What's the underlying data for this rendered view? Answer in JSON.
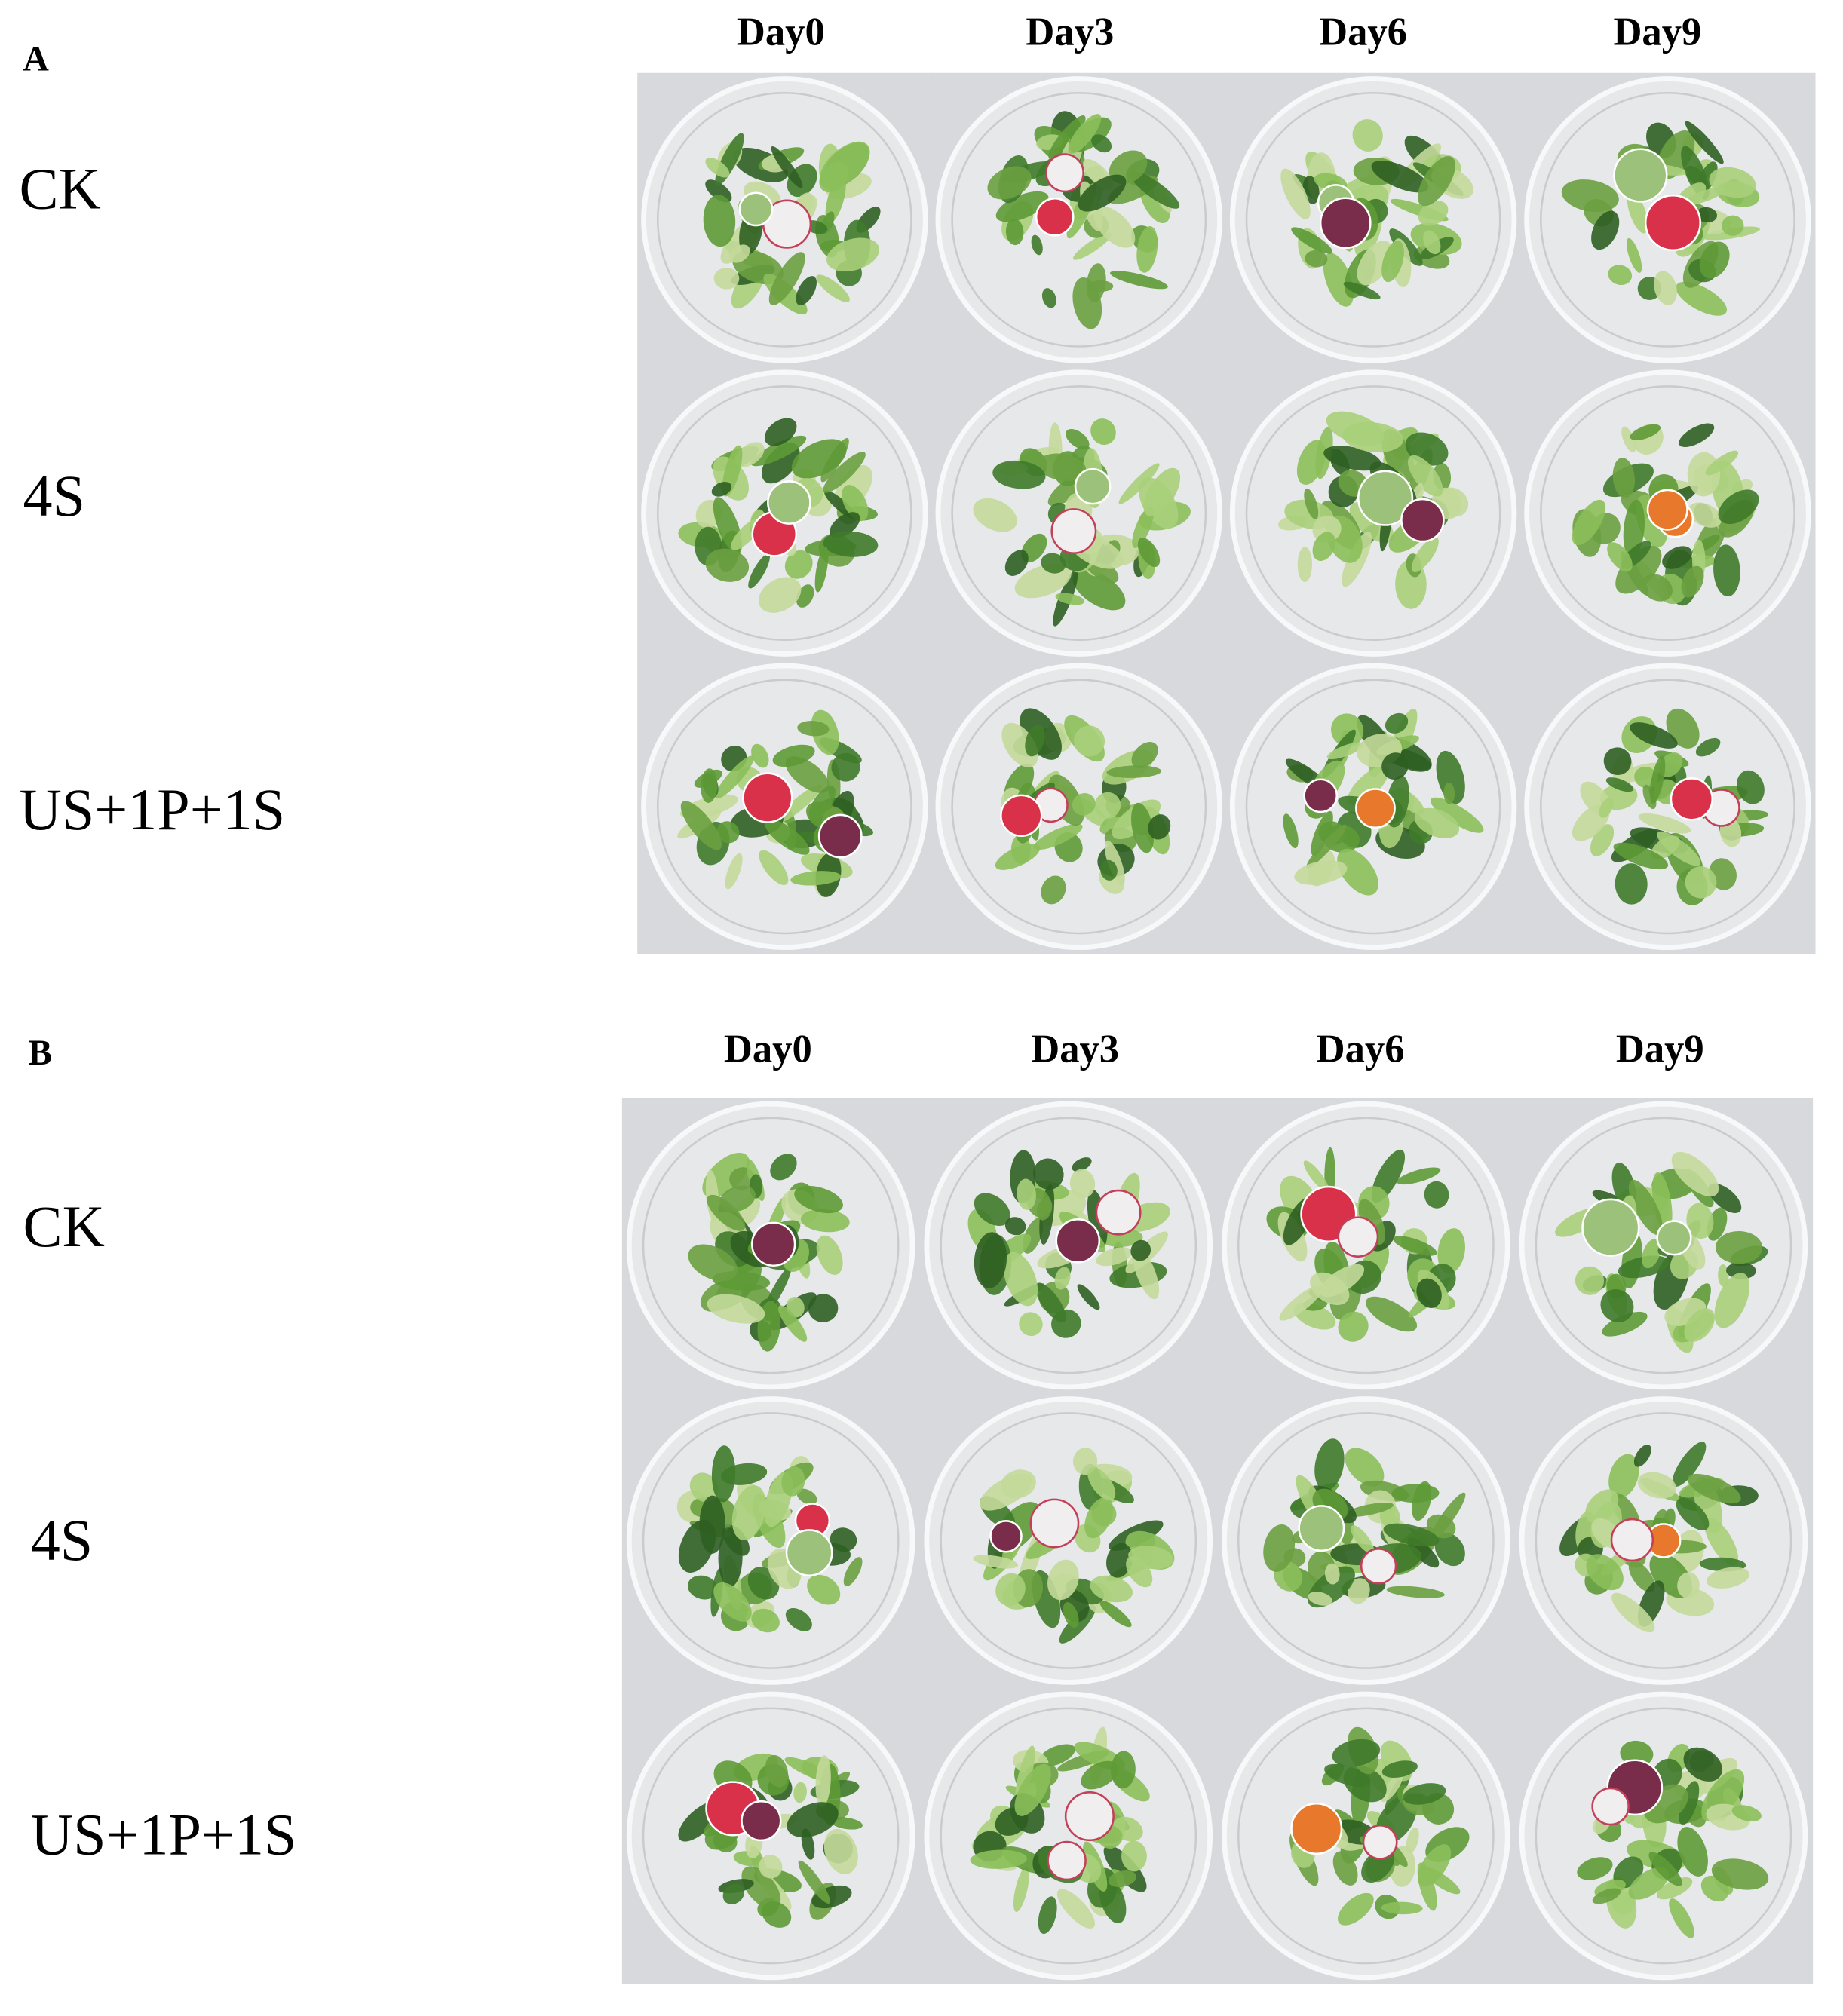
{
  "panels": [
    {
      "label": "A",
      "columns": [
        "Day0",
        "Day3",
        "Day6",
        "Day9"
      ],
      "rows": [
        "CK",
        "4S",
        "US+1P+1S"
      ]
    },
    {
      "label": "B",
      "columns": [
        "Day0",
        "Day3",
        "Day6",
        "Day9"
      ],
      "rows": [
        "CK",
        "4S",
        "US+1P+1S"
      ]
    }
  ]
}
